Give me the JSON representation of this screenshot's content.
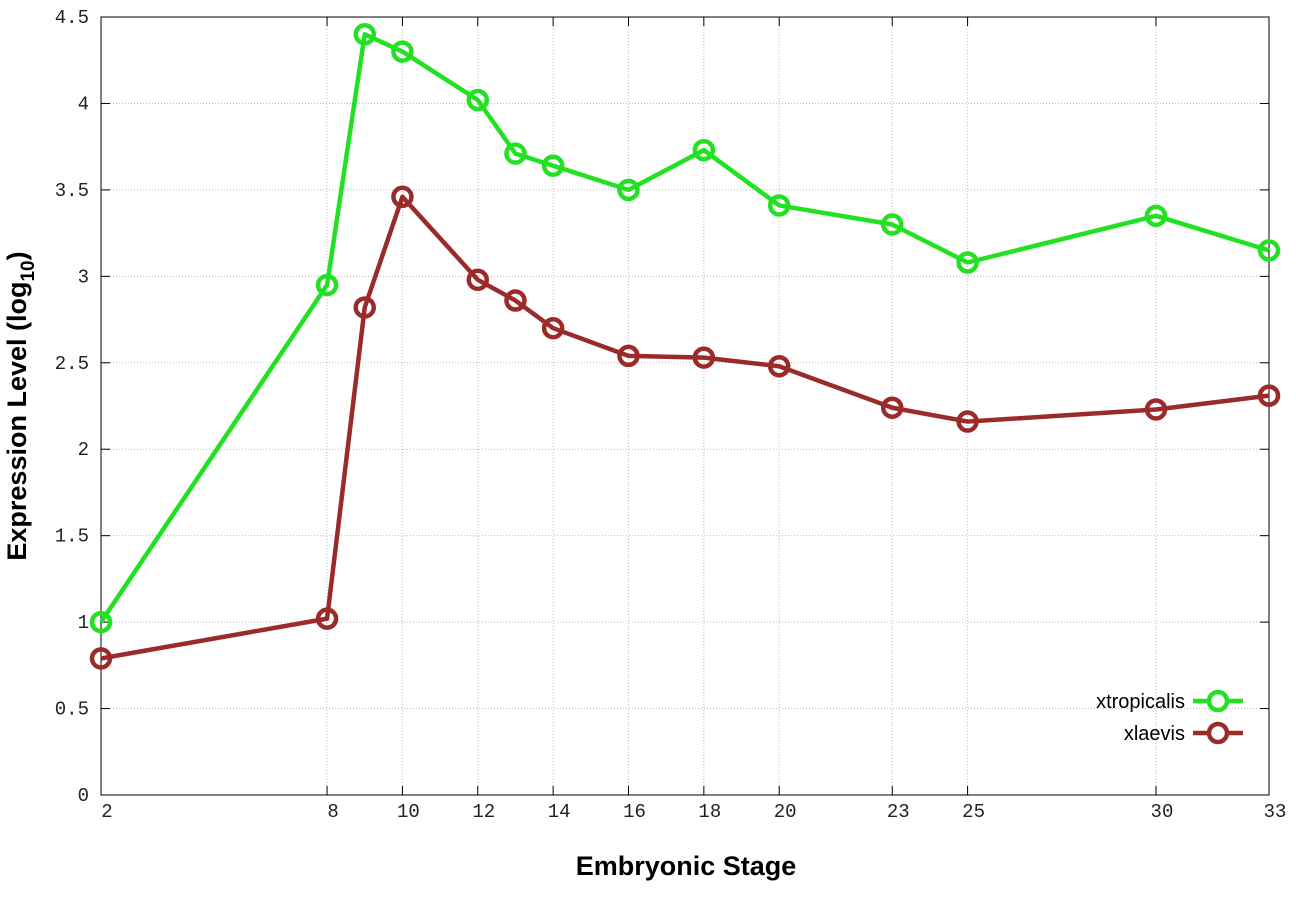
{
  "chart_data": {
    "type": "line",
    "xlabel": "Embryonic Stage",
    "ylabel": [
      "Expression Level (log",
      "10",
      ")"
    ],
    "x": [
      2,
      8,
      9,
      10,
      12,
      13,
      14,
      16,
      18,
      20,
      23,
      25,
      30,
      33
    ],
    "series": [
      {
        "name": "xtropicalis",
        "color": "#22e122",
        "values": [
          1.0,
          2.95,
          4.4,
          4.3,
          4.02,
          3.71,
          3.64,
          3.5,
          3.73,
          3.41,
          3.3,
          3.08,
          3.35,
          3.15
        ]
      },
      {
        "name": "xlaevis",
        "color": "#9b2a2a",
        "values": [
          0.79,
          1.02,
          2.82,
          3.46,
          2.98,
          2.86,
          2.7,
          2.54,
          2.53,
          2.48,
          2.24,
          2.16,
          2.23,
          2.31
        ]
      }
    ],
    "xlim": [
      2,
      33
    ],
    "xticks": [
      2,
      8,
      10,
      12,
      14,
      16,
      18,
      20,
      23,
      25,
      30,
      33
    ],
    "ylim": [
      0,
      4.5
    ],
    "yticks": [
      0,
      0.5,
      1,
      1.5,
      2,
      2.5,
      3,
      3.5,
      4,
      4.5
    ],
    "grid": true,
    "legend": "bottom-right"
  }
}
